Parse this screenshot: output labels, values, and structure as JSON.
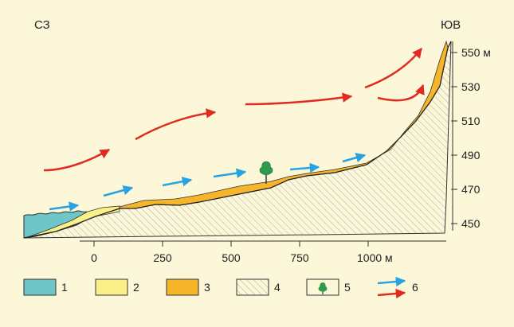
{
  "direction_labels": {
    "left": "СЗ",
    "right": "ЮВ"
  },
  "elevation_axis": {
    "ticks": [
      {
        "value": 550,
        "label": "550 м"
      },
      {
        "value": 530,
        "label": "530"
      },
      {
        "value": 510,
        "label": "510"
      },
      {
        "value": 490,
        "label": "490"
      },
      {
        "value": 470,
        "label": "470"
      },
      {
        "value": 450,
        "label": "450"
      }
    ]
  },
  "distance_axis": {
    "ticks": [
      {
        "value": 0,
        "label": "0"
      },
      {
        "value": 250,
        "label": "250"
      },
      {
        "value": 500,
        "label": "500"
      },
      {
        "value": 750,
        "label": "750"
      },
      {
        "value": 1000,
        "label": "1000 м"
      }
    ]
  },
  "legend": [
    {
      "label": "1",
      "fill": "#6ec6c9",
      "kind": "swatch"
    },
    {
      "label": "2",
      "fill": "#fbef8a",
      "kind": "swatch"
    },
    {
      "label": "3",
      "fill": "#f6b52a",
      "kind": "swatch"
    },
    {
      "label": "4",
      "fill": "hatch",
      "kind": "swatch"
    },
    {
      "label": "5",
      "fill": "#2e9a4c",
      "kind": "tree-icon"
    },
    {
      "label": "6",
      "fill": "",
      "kind": "arrows"
    }
  ],
  "colors": {
    "background": "#fbf7d8",
    "water": "#6ec6c9",
    "light_sand": "#fbef8a",
    "orange_sand": "#f6b52a",
    "blue_arrow": "#29a3e0",
    "red_arrow": "#e02a22",
    "tree": "#2e9a4c"
  }
}
